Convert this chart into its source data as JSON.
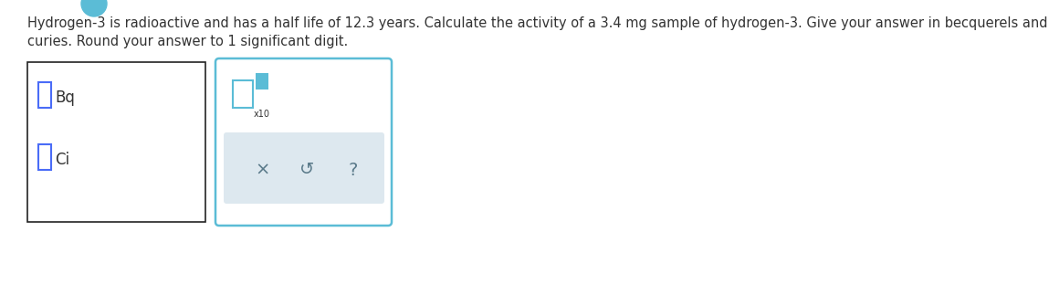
{
  "title_line1": "Hydrogen-3 is radioactive and has a half life of 12.3 years. Calculate the activity of a 3.4 mg sample of hydrogen-3. Give your answer in becquerels and in",
  "title_line2": "curies. Round your answer to 1 significant digit.",
  "text_color": "#333333",
  "font_size": 10.5,
  "label_bq": "Bq",
  "label_ci": "Ci",
  "input_box_color": "#4a6cf7",
  "teal_color": "#5bbcd6",
  "button_bg": "#dde8ef",
  "x_symbol": "×",
  "undo_symbol": "↺",
  "question_symbol": "?",
  "x10_label": "x10",
  "background_color": "#ffffff",
  "box1_edge_color": "#222222",
  "box2_edge_color": "#5bbcd6",
  "button_text_color": "#5a7a8a"
}
